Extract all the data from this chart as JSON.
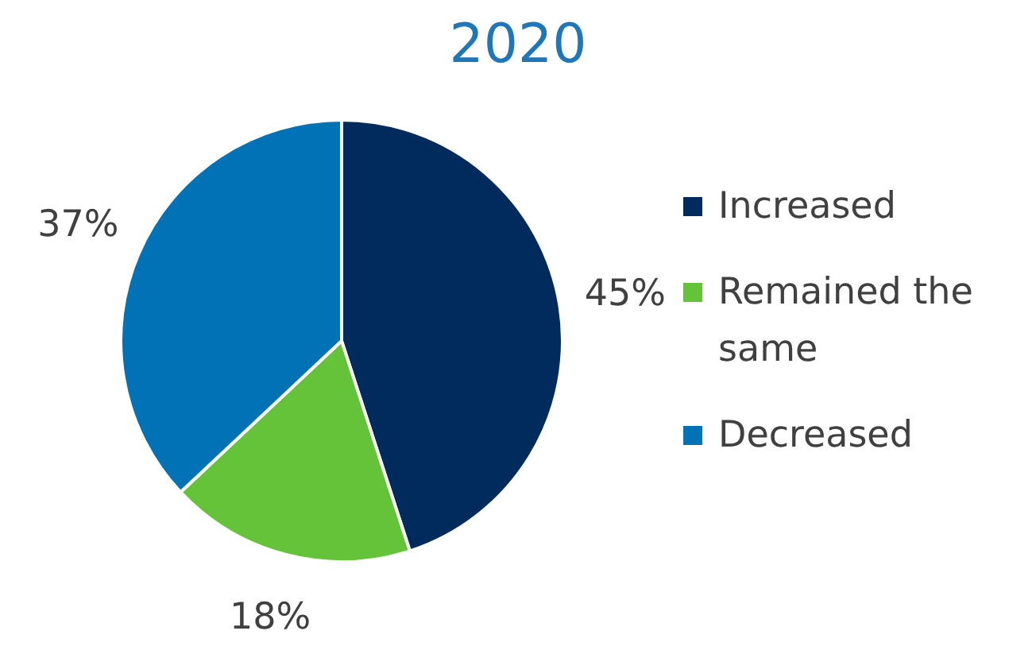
{
  "chart_data": {
    "type": "pie",
    "title": "2020",
    "categories": [
      "Increased",
      "Remained the same",
      "Decreased"
    ],
    "values": [
      45,
      18,
      37
    ],
    "colors": [
      "#002b5c",
      "#65c33a",
      "#0072b5"
    ],
    "value_labels": [
      "45%",
      "18%",
      "37%"
    ],
    "legend": "right"
  }
}
